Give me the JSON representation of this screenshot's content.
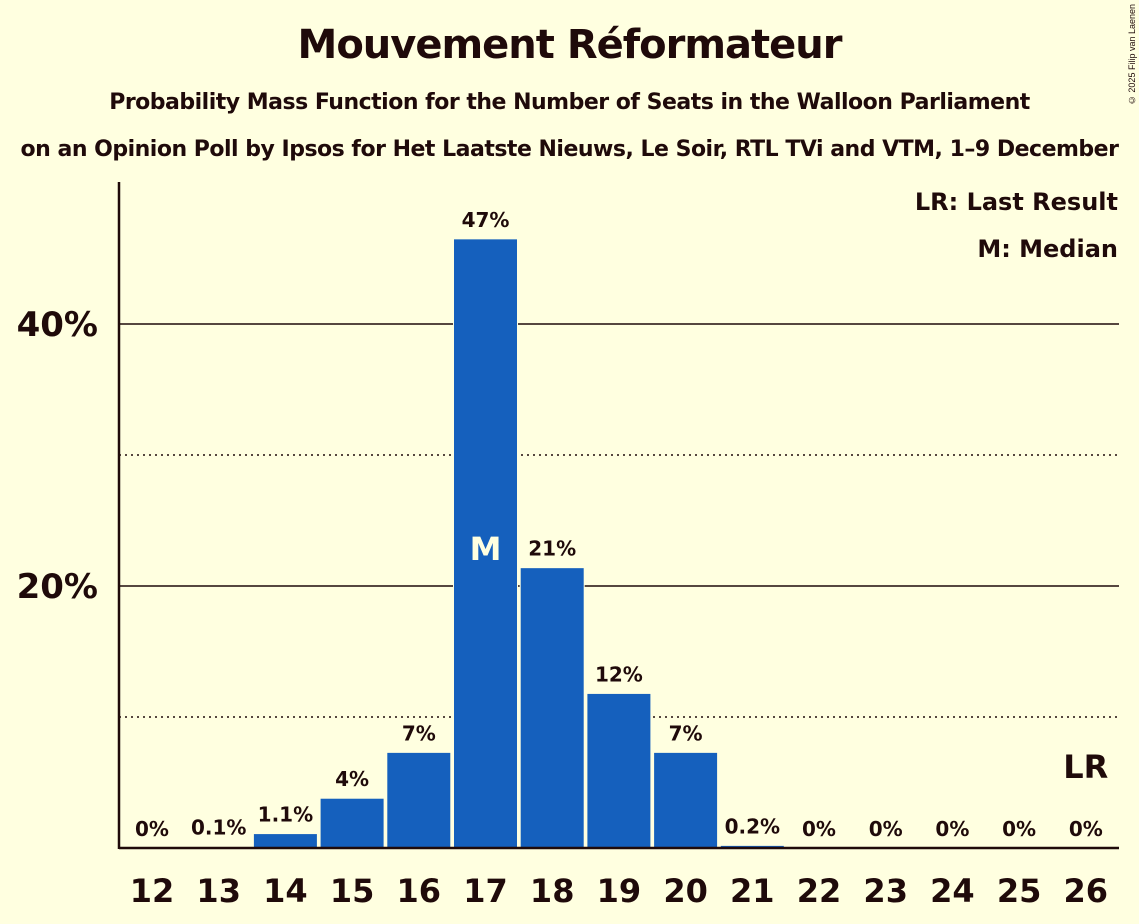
{
  "header": {
    "title": "Mouvement Réformateur",
    "subtitle": "Probability Mass Function for the Number of Seats in the Walloon Parliament",
    "subtitle2": "on an Opinion Poll by Ipsos for Het Laatste Nieuws, Le Soir, RTL TVi and VTM, 1–9 December",
    "copyright": "© 2025 Filip van Laenen"
  },
  "legend": {
    "lr": "LR: Last Result",
    "median": "M: Median"
  },
  "colors": {
    "background": "#FFFFE0",
    "bar": "#1560BD",
    "text": "#1F0A0A"
  },
  "chart_data": {
    "type": "bar",
    "title": "Mouvement Réformateur",
    "subtitle": "Probability Mass Function for the Number of Seats in the Walloon Parliament",
    "xlabel": "",
    "ylabel": "",
    "categories": [
      "12",
      "13",
      "14",
      "15",
      "16",
      "17",
      "18",
      "19",
      "20",
      "21",
      "22",
      "23",
      "24",
      "25",
      "26"
    ],
    "values": [
      0,
      0.1,
      1.1,
      3.8,
      7.3,
      46.5,
      21.4,
      11.8,
      7.3,
      0.2,
      0,
      0,
      0,
      0,
      0
    ],
    "labels": [
      "0%",
      "0.1%",
      "1.1%",
      "4%",
      "7%",
      "47%",
      "21%",
      "12%",
      "7%",
      "0.2%",
      "0%",
      "0%",
      "0%",
      "0%",
      "0%"
    ],
    "ylim": [
      0,
      50
    ],
    "yticks": [
      {
        "value": 20,
        "label": "20%"
      },
      {
        "value": 40,
        "label": "40%"
      }
    ],
    "minor_gridlines": [
      10,
      30
    ],
    "median_category": "17",
    "median_marker": "M",
    "last_result_category": "26",
    "last_result_marker": "LR",
    "legend": [
      "LR: Last Result",
      "M: Median"
    ],
    "legend_position": "top-right",
    "grid": true
  }
}
